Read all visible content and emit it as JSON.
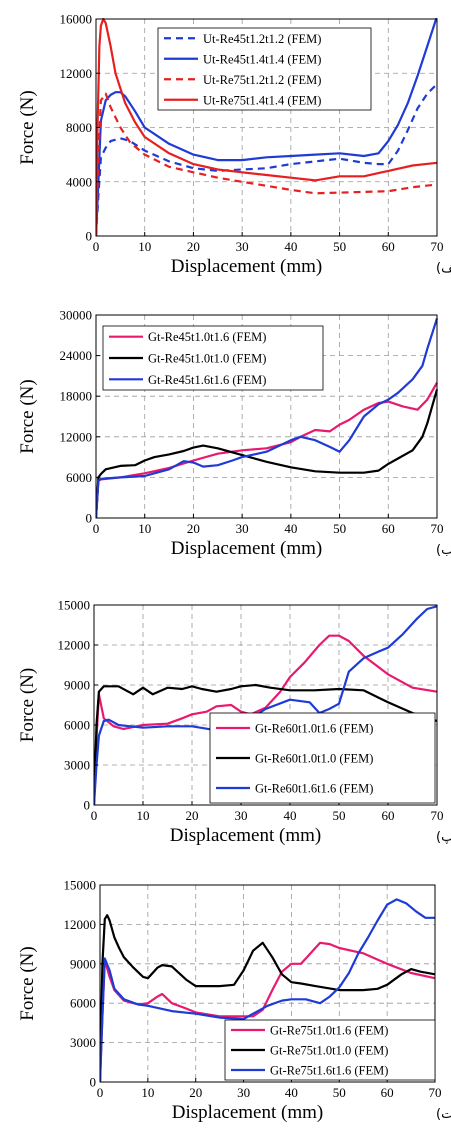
{
  "chart_data": [
    {
      "type": "line",
      "panel_tag": "(الف)",
      "xlabel": "Displacement (mm)",
      "ylabel": "Force (N)",
      "xlim": [
        0,
        70
      ],
      "ylim": [
        0,
        16000
      ],
      "xticks": [
        0,
        10,
        20,
        30,
        40,
        50,
        60,
        70
      ],
      "yticks": [
        0,
        4000,
        8000,
        12000,
        16000
      ],
      "grid": true,
      "legend_position": "top-right",
      "series": [
        {
          "name": "Ut-Re45t1.2t1.2 (FEM)",
          "color": "#1f3bd6",
          "dash": "dashed",
          "x": [
            0,
            0.5,
            1,
            2,
            3,
            5,
            7,
            10,
            15,
            20,
            25,
            30,
            35,
            40,
            45,
            50,
            55,
            58,
            60,
            62,
            64,
            66,
            68,
            70
          ],
          "y": [
            0,
            3000,
            5800,
            6500,
            7000,
            7200,
            7000,
            6300,
            5500,
            5000,
            4800,
            4900,
            5000,
            5300,
            5500,
            5700,
            5400,
            5300,
            5300,
            6300,
            7800,
            9400,
            10500,
            11200
          ]
        },
        {
          "name": "Ut-Re45t1.4t1.4 (FEM)",
          "color": "#1f3bd6",
          "dash": "solid",
          "x": [
            0,
            0.5,
            1,
            2,
            3,
            4,
            5,
            6,
            8,
            10,
            15,
            20,
            25,
            30,
            35,
            40,
            45,
            50,
            55,
            58,
            60,
            62,
            64,
            66,
            68,
            70
          ],
          "y": [
            0,
            4000,
            8500,
            10000,
            10400,
            10600,
            10600,
            10300,
            9200,
            8000,
            6800,
            6000,
            5600,
            5600,
            5800,
            5900,
            6000,
            6100,
            5900,
            6100,
            7000,
            8200,
            9800,
            11800,
            14000,
            16200
          ]
        },
        {
          "name": "Ut-Re75t1.2t1.2 (FEM)",
          "color": "#e62020",
          "dash": "dashed",
          "x": [
            0,
            0.5,
            1,
            2,
            3,
            5,
            7,
            10,
            15,
            20,
            25,
            30,
            35,
            40,
            45,
            50,
            55,
            60,
            65,
            70
          ],
          "y": [
            0,
            6000,
            10000,
            10500,
            9500,
            8000,
            6900,
            6000,
            5100,
            4700,
            4300,
            4000,
            3700,
            3400,
            3150,
            3200,
            3250,
            3300,
            3600,
            3800
          ]
        },
        {
          "name": "Ut-Re75t1.4t1.4 (FEM)",
          "color": "#e62020",
          "dash": "solid",
          "x": [
            0,
            0.3,
            0.7,
            1,
            1.5,
            2,
            3,
            4,
            6,
            8,
            10,
            15,
            20,
            25,
            30,
            35,
            40,
            45,
            50,
            55,
            60,
            65,
            70
          ],
          "y": [
            0,
            8000,
            14000,
            15500,
            16000,
            15700,
            14000,
            12000,
            9800,
            8400,
            7300,
            6100,
            5300,
            4900,
            4700,
            4500,
            4300,
            4100,
            4400,
            4400,
            4800,
            5200,
            5400
          ]
        }
      ]
    },
    {
      "type": "line",
      "panel_tag": "(ب)",
      "xlabel": "Displacement (mm)",
      "ylabel": "Force (N)",
      "xlim": [
        0,
        70
      ],
      "ylim": [
        0,
        30000
      ],
      "xticks": [
        0,
        10,
        20,
        30,
        40,
        50,
        60,
        70
      ],
      "yticks": [
        0,
        6000,
        12000,
        18000,
        24000,
        30000
      ],
      "grid": true,
      "legend_position": "top-left",
      "series": [
        {
          "name": "Gt-Re45t1.0t1.6 (FEM)",
          "color": "#e8196e",
          "dash": "solid",
          "x": [
            0,
            0.5,
            1,
            5,
            10,
            15,
            20,
            25,
            30,
            35,
            40,
            42,
            45,
            48,
            50,
            52,
            55,
            58,
            60,
            63,
            66,
            68,
            70
          ],
          "y": [
            0,
            5500,
            5700,
            6000,
            6600,
            7400,
            8500,
            9500,
            10000,
            10300,
            11200,
            12000,
            13000,
            12800,
            13800,
            14500,
            16000,
            17000,
            17200,
            16500,
            16000,
            17500,
            20000
          ]
        },
        {
          "name": "Gt-Re45t1.0t1.0 (FEM)",
          "color": "#000000",
          "dash": "solid",
          "x": [
            0,
            0.5,
            1,
            2,
            5,
            8,
            10,
            12,
            15,
            18,
            20,
            22,
            25,
            30,
            35,
            40,
            45,
            50,
            55,
            58,
            60,
            62,
            65,
            67,
            68,
            70
          ],
          "y": [
            0,
            6000,
            6500,
            7200,
            7700,
            7800,
            8500,
            9000,
            9400,
            9900,
            10400,
            10700,
            10300,
            9300,
            8300,
            7500,
            6900,
            6700,
            6700,
            7000,
            8000,
            8800,
            10000,
            12000,
            14000,
            19000
          ]
        },
        {
          "name": "Gt-Re45t1.6t1.6 (FEM)",
          "color": "#1f3bd6",
          "dash": "solid",
          "x": [
            0,
            0.5,
            1,
            5,
            10,
            15,
            18,
            20,
            22,
            25,
            28,
            30,
            35,
            40,
            42,
            45,
            48,
            50,
            52,
            55,
            58,
            60,
            62,
            65,
            67,
            68,
            70
          ],
          "y": [
            0,
            5500,
            5800,
            6000,
            6200,
            7200,
            8400,
            8200,
            7600,
            7800,
            8500,
            9000,
            9800,
            11500,
            12000,
            11500,
            10500,
            9800,
            11500,
            15000,
            16800,
            17500,
            18500,
            20500,
            22500,
            25000,
            29500
          ]
        }
      ]
    },
    {
      "type": "line",
      "panel_tag": "(پ)",
      "xlabel": "Displacement (mm)",
      "ylabel": "Force (N)",
      "xlim": [
        0,
        70
      ],
      "ylim": [
        0,
        15000
      ],
      "xticks": [
        0,
        10,
        20,
        30,
        40,
        50,
        60,
        70
      ],
      "yticks": [
        0,
        3000,
        6000,
        9000,
        12000,
        15000
      ],
      "grid": true,
      "legend_position": "bottom-right",
      "series": [
        {
          "name": "Gt-Re60t1.0t1.6 (FEM)",
          "color": "#e8196e",
          "dash": "solid",
          "x": [
            0,
            0.5,
            1,
            2,
            4,
            6,
            10,
            15,
            18,
            20,
            23,
            25,
            28,
            30,
            32,
            35,
            38,
            40,
            43,
            46,
            48,
            50,
            52,
            55,
            60,
            65,
            70
          ],
          "y": [
            0,
            5000,
            8300,
            6500,
            5900,
            5700,
            6000,
            6100,
            6500,
            6800,
            7000,
            7400,
            7500,
            7000,
            6800,
            7300,
            8500,
            9600,
            10700,
            12000,
            12700,
            12700,
            12300,
            11200,
            9800,
            8800,
            8500
          ]
        },
        {
          "name": "Gt-Re60t1.0t1.0 (FEM)",
          "color": "#000000",
          "dash": "solid",
          "x": [
            0,
            0.5,
            1,
            2,
            5,
            8,
            10,
            12,
            15,
            18,
            20,
            22,
            25,
            28,
            30,
            33,
            36,
            40,
            45,
            50,
            55,
            60,
            65,
            70
          ],
          "y": [
            0,
            6000,
            8500,
            8900,
            8900,
            8300,
            8800,
            8300,
            8800,
            8700,
            8900,
            8700,
            8500,
            8700,
            8900,
            9000,
            8800,
            8600,
            8600,
            8700,
            8600,
            7700,
            6900,
            6300
          ]
        },
        {
          "name": "Gt-Re60t1.6t1.6 (FEM)",
          "color": "#1f3bd6",
          "dash": "solid",
          "x": [
            0,
            0.5,
            1,
            2,
            3,
            5,
            10,
            15,
            20,
            25,
            30,
            35,
            40,
            44,
            46,
            48,
            50,
            52,
            55,
            58,
            60,
            63,
            66,
            68,
            70
          ],
          "y": [
            0,
            3000,
            5200,
            6300,
            6400,
            6000,
            5800,
            5900,
            5900,
            5600,
            6000,
            7200,
            7900,
            7700,
            6900,
            7200,
            7600,
            10000,
            11000,
            11500,
            11800,
            12800,
            14000,
            14700,
            14900
          ]
        }
      ]
    },
    {
      "type": "line",
      "panel_tag": "(ت)",
      "xlabel": "Displacement (mm)",
      "ylabel": "Force (N)",
      "xlim": [
        0,
        70
      ],
      "ylim": [
        0,
        15000
      ],
      "xticks": [
        0,
        10,
        20,
        30,
        40,
        50,
        60,
        70
      ],
      "yticks": [
        0,
        3000,
        6000,
        9000,
        12000,
        15000
      ],
      "grid": true,
      "legend_position": "bottom-right",
      "series": [
        {
          "name": "Gt-Re75t1.0t1.6 (FEM)",
          "color": "#e8196e",
          "dash": "solid",
          "x": [
            0,
            0.5,
            1,
            2,
            3,
            5,
            8,
            10,
            12,
            13,
            15,
            18,
            20,
            25,
            30,
            32,
            34,
            36,
            38,
            40,
            42,
            44,
            46,
            48,
            50,
            55,
            60,
            65,
            70
          ],
          "y": [
            0,
            5000,
            9300,
            8000,
            7000,
            6200,
            5900,
            6000,
            6500,
            6700,
            6000,
            5600,
            5300,
            5000,
            5000,
            5000,
            5500,
            7000,
            8400,
            9000,
            9000,
            9800,
            10600,
            10500,
            10200,
            9800,
            9000,
            8300,
            7900
          ]
        },
        {
          "name": "Gt-Re75t1.0t1.0 (FEM)",
          "color": "#000000",
          "dash": "solid",
          "x": [
            0,
            0.5,
            1,
            1.5,
            2,
            3,
            4,
            5,
            7,
            9,
            10,
            12,
            13,
            15,
            18,
            20,
            25,
            28,
            30,
            32,
            34,
            36,
            38,
            40,
            42,
            45,
            50,
            55,
            58,
            60,
            63,
            65,
            67,
            70
          ],
          "y": [
            0,
            9000,
            12400,
            12700,
            12300,
            11000,
            10200,
            9500,
            8700,
            8000,
            7900,
            8700,
            8900,
            8800,
            7800,
            7300,
            7300,
            7400,
            8500,
            10000,
            10600,
            9500,
            8200,
            7600,
            7500,
            7300,
            7000,
            7000,
            7100,
            7400,
            8200,
            8600,
            8400,
            8200
          ]
        },
        {
          "name": "Gt-Re75t1.6t1.6 (FEM)",
          "color": "#1f3bd6",
          "dash": "solid",
          "x": [
            0,
            0.5,
            1,
            2,
            3,
            5,
            8,
            10,
            15,
            20,
            25,
            30,
            32,
            35,
            38,
            40,
            43,
            46,
            48,
            50,
            52,
            54,
            56,
            58,
            60,
            62,
            64,
            66,
            68,
            70
          ],
          "y": [
            0,
            5000,
            9400,
            8500,
            7100,
            6300,
            5900,
            5800,
            5400,
            5200,
            4900,
            4800,
            5200,
            5800,
            6200,
            6300,
            6300,
            6000,
            6500,
            7200,
            8300,
            9800,
            11000,
            12300,
            13500,
            13900,
            13600,
            13000,
            12500,
            12500
          ]
        }
      ]
    }
  ]
}
